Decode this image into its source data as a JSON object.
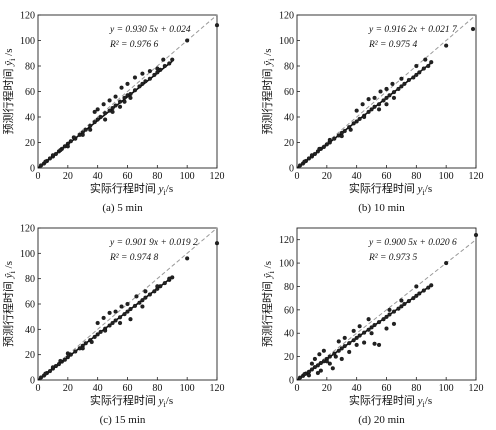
{
  "chart_data": [
    {
      "type": "scatter",
      "panel_caption": "(a)  5  min",
      "xlabel_main": "实际行程时间 ",
      "xlabel_var": "y",
      "xlabel_sub": "i",
      "xlabel_unit": "/s",
      "ylabel_main": "预测行程时间 ",
      "ylabel_var": "ŷ",
      "ylabel_sub": "i",
      "ylabel_unit": " /s",
      "equation": "y = 0.930 5x + 0.024",
      "r2_label": "R² = 0.976 6",
      "xlim": [
        0,
        120
      ],
      "ylim": [
        0,
        120
      ],
      "xticks": [
        0,
        20,
        40,
        60,
        80,
        100,
        120
      ],
      "yticks": [
        0,
        20,
        40,
        60,
        80,
        100,
        120
      ],
      "fit": {
        "slope": 0.9305,
        "intercept": 0.024
      },
      "identity_line": true,
      "points": [
        [
          2,
          2
        ],
        [
          4,
          3.5
        ],
        [
          6,
          5.5
        ],
        [
          8,
          7.5
        ],
        [
          10,
          9
        ],
        [
          12,
          11
        ],
        [
          14,
          13
        ],
        [
          16,
          15
        ],
        [
          18,
          17
        ],
        [
          20,
          19
        ],
        [
          22,
          21
        ],
        [
          25,
          23
        ],
        [
          28,
          26
        ],
        [
          30,
          28
        ],
        [
          32,
          30
        ],
        [
          35,
          33
        ],
        [
          38,
          36
        ],
        [
          40,
          38
        ],
        [
          42,
          40
        ],
        [
          45,
          43
        ],
        [
          48,
          45
        ],
        [
          50,
          47
        ],
        [
          52,
          49
        ],
        [
          55,
          52
        ],
        [
          58,
          55
        ],
        [
          60,
          57
        ],
        [
          62,
          58
        ],
        [
          65,
          61
        ],
        [
          68,
          64
        ],
        [
          70,
          66
        ],
        [
          72,
          68
        ],
        [
          75,
          70
        ],
        [
          78,
          73
        ],
        [
          80,
          75
        ],
        [
          82,
          77
        ],
        [
          85,
          80
        ],
        [
          88,
          82
        ],
        [
          90,
          85
        ],
        [
          100,
          100
        ],
        [
          120,
          112
        ],
        [
          38,
          44
        ],
        [
          40,
          46
        ],
        [
          44,
          50
        ],
        [
          48,
          53
        ],
        [
          52,
          56
        ],
        [
          56,
          63
        ],
        [
          60,
          66
        ],
        [
          65,
          71
        ],
        [
          70,
          74
        ],
        [
          75,
          76
        ],
        [
          80,
          78
        ],
        [
          84,
          85
        ],
        [
          30,
          26
        ],
        [
          35,
          30
        ],
        [
          20,
          17
        ],
        [
          24,
          24
        ],
        [
          45,
          38
        ],
        [
          50,
          44
        ],
        [
          55,
          48
        ],
        [
          58,
          52
        ],
        [
          62,
          55
        ],
        [
          15,
          14
        ],
        [
          10,
          10
        ],
        [
          5,
          5
        ]
      ]
    },
    {
      "type": "scatter",
      "panel_caption": "(b)  10  min",
      "xlabel_main": "实际行程时间 ",
      "xlabel_var": "y",
      "xlabel_sub": "i",
      "xlabel_unit": "/s",
      "ylabel_main": "预测行程时间 ",
      "ylabel_var": "ŷ",
      "ylabel_sub": "i",
      "ylabel_unit": " /s",
      "equation": "y = 0.916 2x + 0.021 7",
      "r2_label": "R² = 0.975 4",
      "xlim": [
        0,
        120
      ],
      "ylim": [
        0,
        120
      ],
      "xticks": [
        0,
        20,
        40,
        60,
        80,
        100,
        120
      ],
      "yticks": [
        0,
        20,
        40,
        60,
        80,
        100,
        120
      ],
      "fit": {
        "slope": 0.9162,
        "intercept": 0.0217
      },
      "identity_line": true,
      "points": [
        [
          2,
          2
        ],
        [
          4,
          3.5
        ],
        [
          6,
          5.5
        ],
        [
          8,
          7.5
        ],
        [
          10,
          9
        ],
        [
          12,
          11
        ],
        [
          14,
          13
        ],
        [
          16,
          15
        ],
        [
          18,
          16.5
        ],
        [
          20,
          18.5
        ],
        [
          22,
          20
        ],
        [
          25,
          23
        ],
        [
          28,
          25.5
        ],
        [
          30,
          27.5
        ],
        [
          32,
          29
        ],
        [
          35,
          32
        ],
        [
          38,
          35
        ],
        [
          40,
          36.5
        ],
        [
          42,
          38.5
        ],
        [
          45,
          41
        ],
        [
          48,
          44
        ],
        [
          50,
          46
        ],
        [
          52,
          48
        ],
        [
          55,
          50
        ],
        [
          58,
          53
        ],
        [
          60,
          55
        ],
        [
          62,
          57
        ],
        [
          65,
          59.5
        ],
        [
          68,
          62
        ],
        [
          70,
          64
        ],
        [
          72,
          66
        ],
        [
          75,
          69
        ],
        [
          78,
          71
        ],
        [
          80,
          73
        ],
        [
          82,
          75
        ],
        [
          85,
          78
        ],
        [
          88,
          80
        ],
        [
          90,
          83
        ],
        [
          100,
          96
        ],
        [
          118,
          109
        ],
        [
          40,
          45
        ],
        [
          44,
          50
        ],
        [
          48,
          54
        ],
        [
          52,
          55
        ],
        [
          56,
          60
        ],
        [
          60,
          62
        ],
        [
          64,
          66
        ],
        [
          70,
          70
        ],
        [
          80,
          80
        ],
        [
          86,
          85
        ],
        [
          30,
          25
        ],
        [
          36,
          30
        ],
        [
          45,
          40
        ],
        [
          55,
          46
        ],
        [
          60,
          50
        ],
        [
          65,
          55
        ],
        [
          22,
          22
        ],
        [
          15,
          15
        ],
        [
          10,
          10
        ],
        [
          5,
          5
        ]
      ]
    },
    {
      "type": "scatter",
      "panel_caption": "(c)  15  min",
      "xlabel_main": "实际行程时间 ",
      "xlabel_var": "y",
      "xlabel_sub": "i",
      "xlabel_unit": "/s",
      "ylabel_main": "预测行程时间 ",
      "ylabel_var": "ŷ",
      "ylabel_sub": "i",
      "ylabel_unit": " /s",
      "equation": "y = 0.901 9x + 0.019 2",
      "r2_label": "R² = 0.974 8",
      "xlim": [
        0,
        120
      ],
      "ylim": [
        0,
        120
      ],
      "xticks": [
        0,
        20,
        40,
        60,
        80,
        100,
        120
      ],
      "yticks": [
        0,
        20,
        40,
        60,
        80,
        100,
        120
      ],
      "fit": {
        "slope": 0.9019,
        "intercept": 0.0192
      },
      "identity_line": true,
      "points": [
        [
          2,
          2
        ],
        [
          4,
          3.5
        ],
        [
          6,
          5.5
        ],
        [
          8,
          7
        ],
        [
          10,
          9
        ],
        [
          12,
          11
        ],
        [
          14,
          12.5
        ],
        [
          16,
          14.5
        ],
        [
          18,
          16
        ],
        [
          20,
          18
        ],
        [
          22,
          20
        ],
        [
          25,
          22.5
        ],
        [
          28,
          25
        ],
        [
          30,
          27
        ],
        [
          32,
          29
        ],
        [
          35,
          31.5
        ],
        [
          38,
          34
        ],
        [
          40,
          36
        ],
        [
          42,
          38
        ],
        [
          45,
          40.5
        ],
        [
          48,
          43
        ],
        [
          50,
          45
        ],
        [
          52,
          47
        ],
        [
          55,
          49.5
        ],
        [
          58,
          52
        ],
        [
          60,
          54
        ],
        [
          62,
          56
        ],
        [
          65,
          58.5
        ],
        [
          68,
          61
        ],
        [
          70,
          63
        ],
        [
          72,
          65
        ],
        [
          75,
          67.5
        ],
        [
          78,
          70
        ],
        [
          80,
          72
        ],
        [
          82,
          74
        ],
        [
          85,
          76.5
        ],
        [
          88,
          79
        ],
        [
          90,
          81
        ],
        [
          100,
          96
        ],
        [
          120,
          108
        ],
        [
          40,
          45
        ],
        [
          44,
          49
        ],
        [
          48,
          53
        ],
        [
          52,
          54
        ],
        [
          56,
          58
        ],
        [
          60,
          60
        ],
        [
          66,
          66
        ],
        [
          72,
          70
        ],
        [
          80,
          74
        ],
        [
          88,
          80
        ],
        [
          30,
          25
        ],
        [
          36,
          30
        ],
        [
          45,
          39
        ],
        [
          55,
          45
        ],
        [
          62,
          48
        ],
        [
          70,
          58
        ],
        [
          20,
          21
        ],
        [
          15,
          15
        ],
        [
          10,
          10
        ],
        [
          5,
          5
        ]
      ]
    },
    {
      "type": "scatter",
      "panel_caption": "(d)  20  min",
      "xlabel_main": "实际行程时间 ",
      "xlabel_var": "y",
      "xlabel_sub": "i",
      "xlabel_unit": "/s",
      "ylabel_main": "预测行程时间 ",
      "ylabel_var": "ŷ",
      "ylabel_sub": "i",
      "ylabel_unit": " /s",
      "equation": "y = 0.900 5x + 0.020 6",
      "r2_label": "R² = 0.973 5",
      "xlim": [
        0,
        120
      ],
      "ylim": [
        0,
        130
      ],
      "xticks": [
        0,
        20,
        40,
        60,
        80,
        100,
        120
      ],
      "yticks": [
        0,
        20,
        40,
        60,
        80,
        100,
        120
      ],
      "fit": {
        "slope": 0.9005,
        "intercept": 0.0206
      },
      "identity_line": true,
      "points": [
        [
          2,
          2
        ],
        [
          4,
          3.5
        ],
        [
          6,
          5.5
        ],
        [
          8,
          7
        ],
        [
          10,
          9
        ],
        [
          12,
          11
        ],
        [
          14,
          12.5
        ],
        [
          16,
          14.5
        ],
        [
          18,
          16
        ],
        [
          20,
          18
        ],
        [
          22,
          20
        ],
        [
          25,
          22.5
        ],
        [
          28,
          25
        ],
        [
          30,
          27
        ],
        [
          32,
          29
        ],
        [
          35,
          31.5
        ],
        [
          38,
          34
        ],
        [
          40,
          36
        ],
        [
          42,
          38
        ],
        [
          45,
          40.5
        ],
        [
          48,
          43
        ],
        [
          50,
          45
        ],
        [
          52,
          47
        ],
        [
          55,
          49.5
        ],
        [
          58,
          52
        ],
        [
          60,
          54
        ],
        [
          62,
          56
        ],
        [
          65,
          58.5
        ],
        [
          68,
          61
        ],
        [
          70,
          63
        ],
        [
          72,
          65
        ],
        [
          75,
          67.5
        ],
        [
          78,
          70
        ],
        [
          80,
          72
        ],
        [
          82,
          74
        ],
        [
          85,
          76.5
        ],
        [
          88,
          79
        ],
        [
          90,
          81
        ],
        [
          100,
          100
        ],
        [
          120,
          124
        ],
        [
          10,
          14
        ],
        [
          12,
          18
        ],
        [
          15,
          22
        ],
        [
          18,
          25
        ],
        [
          20,
          16
        ],
        [
          22,
          14
        ],
        [
          24,
          10
        ],
        [
          26,
          20
        ],
        [
          28,
          33
        ],
        [
          30,
          18
        ],
        [
          32,
          36
        ],
        [
          35,
          24
        ],
        [
          40,
          30
        ],
        [
          45,
          32
        ],
        [
          50,
          40
        ],
        [
          52,
          31
        ],
        [
          55,
          30
        ],
        [
          60,
          44
        ],
        [
          65,
          48
        ],
        [
          38,
          42
        ],
        [
          42,
          46
        ],
        [
          48,
          52
        ],
        [
          62,
          60
        ],
        [
          70,
          68
        ],
        [
          80,
          80
        ],
        [
          16,
          8
        ],
        [
          14,
          6
        ],
        [
          8,
          4
        ],
        [
          5,
          5
        ]
      ]
    }
  ]
}
